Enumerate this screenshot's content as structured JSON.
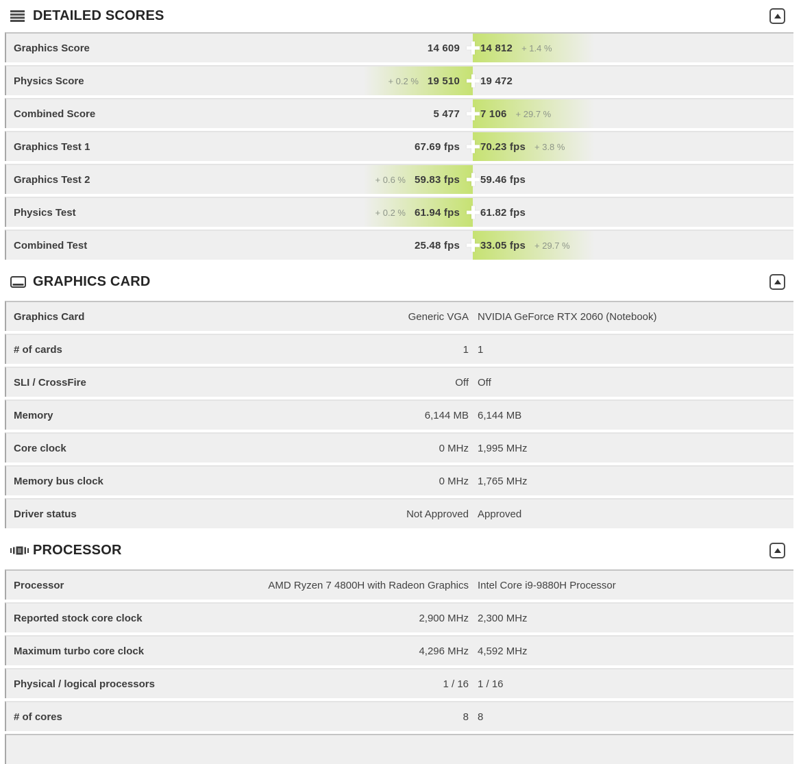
{
  "colors": {
    "accent_green": "#c6e272",
    "row_background": "#efefef",
    "row_left_border": "#a8a8a8",
    "delta_text": "#8e9689",
    "label_text": "#3d3d3d",
    "title_text": "#252525"
  },
  "ui": {
    "collapse_icon": "collapse-up-icon"
  },
  "sections": [
    {
      "id": "detailed-scores",
      "title": "DETAILED SCORES",
      "icon": "list-icon",
      "score_style": true,
      "rows": [
        {
          "label": "Graphics Score",
          "left": "14 609",
          "right": "14 812",
          "winner": "right",
          "delta": "+ 1.4 %"
        },
        {
          "label": "Physics Score",
          "left": "19 510",
          "right": "19 472",
          "winner": "left",
          "delta": "+ 0.2 %"
        },
        {
          "label": "Combined Score",
          "left": "5 477",
          "right": "7 106",
          "winner": "right",
          "delta": "+ 29.7 %"
        },
        {
          "label": "Graphics Test 1",
          "left": "67.69 fps",
          "right": "70.23 fps",
          "winner": "right",
          "delta": "+ 3.8 %"
        },
        {
          "label": "Graphics Test 2",
          "left": "59.83 fps",
          "right": "59.46 fps",
          "winner": "left",
          "delta": "+ 0.6 %"
        },
        {
          "label": "Physics Test",
          "left": "61.94 fps",
          "right": "61.82 fps",
          "winner": "left",
          "delta": "+ 0.2 %"
        },
        {
          "label": "Combined Test",
          "left": "25.48 fps",
          "right": "33.05 fps",
          "winner": "right",
          "delta": "+ 29.7 %"
        }
      ]
    },
    {
      "id": "graphics-card",
      "title": "GRAPHICS CARD",
      "icon": "display-icon",
      "score_style": false,
      "rows": [
        {
          "label": "Graphics Card",
          "left": "Generic VGA",
          "right": "NVIDIA GeForce RTX 2060 (Notebook)"
        },
        {
          "label": "# of cards",
          "left": "1",
          "right": "1"
        },
        {
          "label": "SLI / CrossFire",
          "left": "Off",
          "right": "Off"
        },
        {
          "label": "Memory",
          "left": "6,144 MB",
          "right": "6,144 MB"
        },
        {
          "label": "Core clock",
          "left": "0 MHz",
          "right": "1,995 MHz"
        },
        {
          "label": "Memory bus clock",
          "left": "0 MHz",
          "right": "1,765 MHz"
        },
        {
          "label": "Driver status",
          "left": "Not Approved",
          "right": "Approved"
        }
      ]
    },
    {
      "id": "processor",
      "title": "PROCESSOR",
      "icon": "cpu-icon",
      "score_style": false,
      "rows": [
        {
          "label": "Processor",
          "left": "AMD Ryzen 7 4800H with Radeon Graphics",
          "right": "Intel Core i9-9880H Processor"
        },
        {
          "label": "Reported stock core clock",
          "left": "2,900 MHz",
          "right": "2,300 MHz"
        },
        {
          "label": "Maximum turbo core clock",
          "left": "4,296 MHz",
          "right": "4,592 MHz"
        },
        {
          "label": "Physical / logical processors",
          "left": "1 / 16",
          "right": "1 / 16"
        },
        {
          "label": "# of cores",
          "left": "8",
          "right": "8"
        }
      ]
    }
  ]
}
